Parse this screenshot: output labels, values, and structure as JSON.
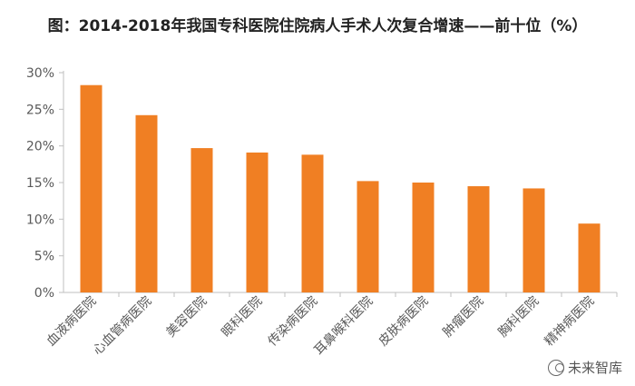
{
  "chart_data": {
    "type": "bar",
    "title": "图：2014-2018年我国专科医院住院病人手术人次复合增速——前十位（%）",
    "categories": [
      "血液病医院",
      "心血管病医院",
      "美容医院",
      "眼科医院",
      "传染病医院",
      "耳鼻喉科医院",
      "皮肤病医院",
      "肿瘤医院",
      "胸科医院",
      "精神病医院"
    ],
    "values": [
      28.3,
      24.2,
      19.7,
      19.1,
      18.8,
      15.2,
      15.0,
      14.5,
      14.2,
      9.4
    ],
    "ylim": [
      0,
      30
    ],
    "yticks": [
      "0%",
      "5%",
      "10%",
      "15%",
      "20%",
      "25%",
      "30%"
    ],
    "ytick_values": [
      0,
      5,
      10,
      15,
      20,
      25,
      30
    ],
    "grid": false,
    "bar_color": "#F07F23",
    "axis_color": "#BFBFBF",
    "tick_text_color": "#595959"
  },
  "watermark": {
    "text": "未来智库",
    "icon": "wechat-icon"
  }
}
